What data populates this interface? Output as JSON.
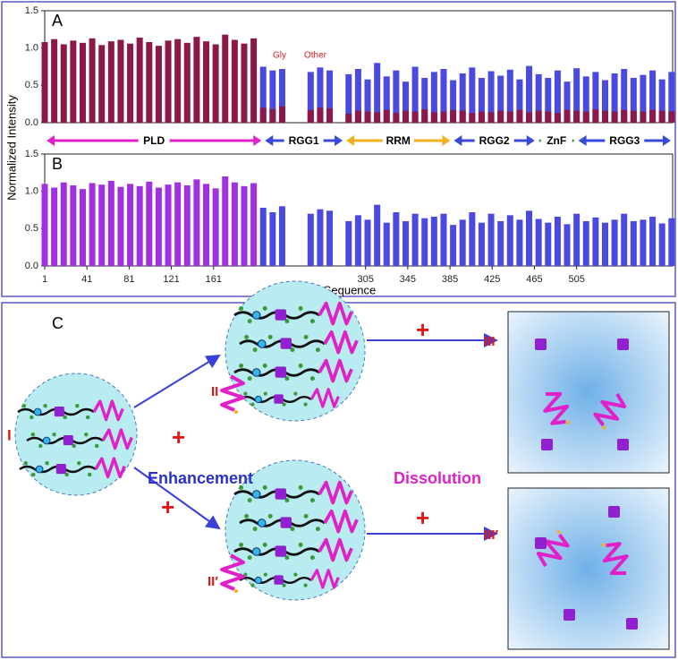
{
  "chart_data": [
    {
      "type": "bar",
      "label": "A",
      "ylabel": "Normalized Intensity",
      "legend_color": "#e02020",
      "xlim": [
        1,
        596
      ],
      "ylim": [
        0,
        1.5
      ],
      "yticks": [
        {
          "value": 0,
          "label": "0.0"
        },
        {
          "value": 0.5,
          "label": "0.5"
        },
        {
          "value": 1,
          "label": "1.0"
        },
        {
          "value": 1.5,
          "label": "1.5"
        }
      ],
      "x": [
        1,
        10,
        19,
        28,
        37,
        46,
        55,
        64,
        73,
        82,
        91,
        100,
        109,
        118,
        127,
        136,
        145,
        154,
        163,
        172,
        181,
        190,
        199,
        208,
        217,
        226,
        235,
        244,
        253,
        262,
        271,
        280,
        289,
        298,
        307,
        316,
        325,
        334,
        343,
        352,
        361,
        370,
        379,
        388,
        397,
        406,
        415,
        424,
        433,
        442,
        451,
        460,
        469,
        478,
        487,
        496,
        505,
        514,
        523,
        532,
        541,
        550,
        559,
        568,
        577,
        586,
        595
      ],
      "series": [
        {
          "name": "Gly",
          "color": "#4a4ae0",
          "values": [
            null,
            null,
            null,
            null,
            null,
            null,
            null,
            null,
            null,
            null,
            null,
            null,
            null,
            null,
            null,
            null,
            null,
            null,
            null,
            null,
            null,
            null,
            null,
            0.75,
            0.7,
            0.72,
            null,
            null,
            0.68,
            0.74,
            0.7,
            null,
            0.65,
            0.72,
            0.58,
            0.8,
            0.62,
            0.7,
            0.55,
            0.75,
            0.6,
            0.68,
            0.72,
            0.57,
            0.66,
            0.74,
            0.6,
            0.69,
            0.63,
            0.71,
            0.58,
            0.76,
            0.65,
            0.6,
            0.7,
            0.55,
            0.73,
            0.62,
            0.68,
            0.57,
            0.66,
            0.72,
            0.6,
            0.64,
            0.7,
            0.58,
            0.68
          ]
        },
        {
          "name": "Other",
          "color": "#8b1848",
          "values": [
            1.08,
            1.12,
            1.05,
            1.1,
            1.07,
            1.13,
            1.04,
            1.09,
            1.11,
            1.06,
            1.14,
            1.08,
            1.03,
            1.1,
            1.12,
            1.07,
            1.15,
            1.09,
            1.05,
            1.18,
            1.11,
            1.06,
            1.13,
            0.2,
            0.18,
            0.22,
            null,
            null,
            0.17,
            0.2,
            0.19,
            null,
            0.12,
            0.16,
            0.15,
            0.14,
            0.17,
            0.13,
            0.16,
            0.15,
            0.18,
            0.14,
            0.15,
            0.17,
            0.16,
            0.13,
            0.15,
            0.14,
            0.16,
            0.15,
            0.17,
            0.14,
            0.16,
            0.15,
            0.13,
            0.17,
            0.16,
            0.15,
            0.18,
            0.16,
            0.15,
            0.17,
            0.16,
            0.15,
            0.17,
            0.16,
            0.15
          ]
        }
      ],
      "domains": [
        {
          "name": "PLD",
          "start": 1,
          "end": 208,
          "color": "#e020c8"
        },
        {
          "name": "RGG1",
          "start": 208,
          "end": 285,
          "color": "#3a4ad8"
        },
        {
          "name": "RRM",
          "start": 285,
          "end": 387,
          "color": "#f0b020"
        },
        {
          "name": "RGG2",
          "start": 387,
          "end": 467,
          "color": "#3a4ad8"
        },
        {
          "name": "ZnF",
          "start": 467,
          "end": 505,
          "color": "#20a040"
        },
        {
          "name": "RGG3",
          "start": 505,
          "end": 596,
          "color": "#3a4ad8"
        }
      ]
    },
    {
      "type": "bar",
      "label": "B",
      "xlabel": "Sequence",
      "xlim": [
        1,
        596
      ],
      "ylim": [
        0,
        1.5
      ],
      "yticks": [
        {
          "value": 0,
          "label": "0.0"
        },
        {
          "value": 0.5,
          "label": "0.5"
        },
        {
          "value": 1,
          "label": "1.0"
        },
        {
          "value": 1.5,
          "label": "1.5"
        }
      ],
      "xticks": [
        1,
        41,
        81,
        121,
        161,
        305,
        345,
        385,
        425,
        465,
        505
      ],
      "x": [
        1,
        10,
        19,
        28,
        37,
        46,
        55,
        64,
        73,
        82,
        91,
        100,
        109,
        118,
        127,
        136,
        145,
        154,
        163,
        172,
        181,
        190,
        199,
        208,
        217,
        226,
        235,
        244,
        253,
        262,
        271,
        280,
        289,
        298,
        307,
        316,
        325,
        334,
        343,
        352,
        361,
        370,
        379,
        388,
        397,
        406,
        415,
        424,
        433,
        442,
        451,
        460,
        469,
        478,
        487,
        496,
        505,
        514,
        523,
        532,
        541,
        550,
        559,
        568,
        577,
        586,
        595
      ],
      "series": [
        {
          "color": "#a030e0",
          "values": [
            1.1,
            1.05,
            1.12,
            1.08,
            1.03,
            1.11,
            1.09,
            1.14,
            1.06,
            1.1,
            1.07,
            1.13,
            1.05,
            1.09,
            1.12,
            1.08,
            1.16,
            1.1,
            1.04,
            1.2,
            1.12,
            1.07,
            1.11,
            null,
            null,
            null,
            null,
            null,
            null,
            null,
            null,
            null,
            null,
            null,
            null,
            null,
            null,
            null,
            null,
            null,
            null,
            null,
            null,
            null,
            null,
            null,
            null,
            null,
            null,
            null,
            null,
            null,
            null,
            null,
            null,
            null,
            null,
            null,
            null,
            null,
            null,
            null,
            null,
            null,
            null,
            null,
            null
          ]
        },
        {
          "color": "#4a4ae0",
          "values": [
            null,
            null,
            null,
            null,
            null,
            null,
            null,
            null,
            null,
            null,
            null,
            null,
            null,
            null,
            null,
            null,
            null,
            null,
            null,
            null,
            null,
            null,
            null,
            0.78,
            0.72,
            0.8,
            null,
            null,
            0.7,
            0.76,
            0.74,
            null,
            0.6,
            0.68,
            0.62,
            0.82,
            0.58,
            0.72,
            0.6,
            0.7,
            0.64,
            0.66,
            0.7,
            0.55,
            0.62,
            0.72,
            0.58,
            0.7,
            0.6,
            0.68,
            0.62,
            0.74,
            0.63,
            0.58,
            0.66,
            0.56,
            0.7,
            0.6,
            0.65,
            0.58,
            0.62,
            0.7,
            0.6,
            0.62,
            0.66,
            0.57,
            0.64
          ]
        }
      ]
    }
  ],
  "diagram": {
    "label": "C",
    "stages": [
      "I",
      "II",
      "II′",
      "III",
      "III′"
    ],
    "plus": "+",
    "enhancement": "Enhancement",
    "dissolution": "Dissolution"
  }
}
